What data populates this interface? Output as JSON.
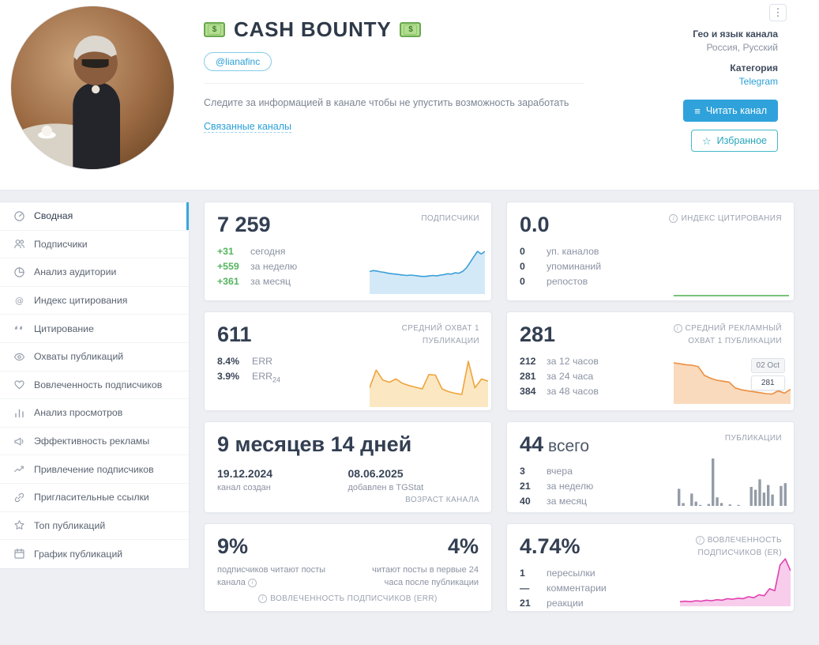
{
  "header": {
    "title": "CASH BOUNTY",
    "username": "@lianafinc",
    "description": "Следите за информацией в канале чтобы не упустить возможность заработать",
    "related_channels": "Связанные каналы",
    "geo": {
      "label": "Гео и язык канала",
      "value": "Россия, Русский"
    },
    "category": {
      "label": "Категория",
      "value": "Telegram"
    },
    "buttons": {
      "read": "Читать канал",
      "favorite": "Избранное"
    }
  },
  "sidebar": {
    "items": [
      {
        "label": "Сводная",
        "icon": "gauge",
        "active": true
      },
      {
        "label": "Подписчики",
        "icon": "users"
      },
      {
        "label": "Анализ аудитории",
        "icon": "pie"
      },
      {
        "label": "Индекс цитирования",
        "icon": "at"
      },
      {
        "label": "Цитирование",
        "icon": "quote"
      },
      {
        "label": "Охваты публикаций",
        "icon": "eye"
      },
      {
        "label": "Вовлеченность подписчиков",
        "icon": "heart"
      },
      {
        "label": "Анализ просмотров",
        "icon": "bars"
      },
      {
        "label": "Эффективность рекламы",
        "icon": "megaphone"
      },
      {
        "label": "Привлечение подписчиков",
        "icon": "trend"
      },
      {
        "label": "Пригласительные ссылки",
        "icon": "link"
      },
      {
        "label": "Топ публикаций",
        "icon": "star"
      },
      {
        "label": "График публикаций",
        "icon": "calendar"
      }
    ]
  },
  "cards": {
    "subscribers": {
      "value": "7 259",
      "label": "ПОДПИСЧИКИ",
      "stats": [
        {
          "num": "+31",
          "text": "сегодня"
        },
        {
          "num": "+559",
          "text": "за неделю"
        },
        {
          "num": "+361",
          "text": "за месяц"
        }
      ]
    },
    "citation": {
      "value": "0.0",
      "label": "ИНДЕКС ЦИТИРОВАНИЯ",
      "stats": [
        {
          "num": "0",
          "text": "уп. каналов"
        },
        {
          "num": "0",
          "text": "упоминаний"
        },
        {
          "num": "0",
          "text": "репостов"
        }
      ]
    },
    "reach": {
      "value": "611",
      "label": "СРЕДНИЙ ОХВАТ 1 ПУБЛИКАЦИИ",
      "stats": [
        {
          "num": "8.4%",
          "text": "ERR"
        },
        {
          "num": "3.9%",
          "text": "ERR",
          "sub": "24"
        }
      ]
    },
    "ad_reach": {
      "value": "281",
      "label": "СРЕДНИЙ РЕКЛАМНЫЙ ОХВАТ 1 ПУБЛИКАЦИИ",
      "stats": [
        {
          "num": "212",
          "text": "за 12 часов"
        },
        {
          "num": "281",
          "text": "за 24 часа"
        },
        {
          "num": "384",
          "text": "за 48 часов"
        }
      ],
      "tooltip": {
        "date": "02 Oct",
        "value": "281"
      }
    },
    "age": {
      "value": "9 месяцев 14 дней",
      "label": "ВОЗРАСТ КАНАЛА",
      "created": {
        "date": "19.12.2024",
        "caption": "канал создан"
      },
      "added": {
        "date": "08.06.2025",
        "caption": "добавлен в TGStat"
      }
    },
    "publications": {
      "value": "44",
      "value_suffix": "всего",
      "label": "ПУБЛИКАЦИИ",
      "stats": [
        {
          "num": "3",
          "text": "вчера"
        },
        {
          "num": "21",
          "text": "за неделю"
        },
        {
          "num": "40",
          "text": "за месяц"
        }
      ]
    },
    "err": {
      "left": {
        "value": "9%",
        "caption": "подписчиков читают посты канала"
      },
      "right": {
        "value": "4%",
        "caption": "читают посты в первые 24 часа после публикации"
      },
      "label": "ВОВЛЕЧЕННОСТЬ ПОДПИСЧИКОВ (ERR)"
    },
    "er": {
      "value": "4.74%",
      "label": "ВОВЛЕЧЕННОСТЬ ПОДПИСЧИКОВ (ER)",
      "stats": [
        {
          "num": "1",
          "text": "пересылки"
        },
        {
          "num": "—",
          "text": "комментарии"
        },
        {
          "num": "21",
          "text": "реакции"
        }
      ]
    }
  },
  "chart_data": {
    "subscribers": {
      "type": "area",
      "color": "#3b9fd8",
      "fill": "#d4e9f7",
      "values": [
        47,
        49,
        48,
        46,
        45,
        43,
        42,
        41,
        40,
        39,
        38,
        39,
        38,
        37,
        36,
        36,
        37,
        38,
        37,
        39,
        40,
        42,
        41,
        44,
        43,
        47,
        55,
        67,
        80,
        92,
        86,
        92
      ]
    },
    "citation": {
      "type": "line",
      "color": "#4cae4f",
      "values": [
        0,
        0,
        0,
        0,
        0,
        0,
        0,
        0,
        0,
        0
      ]
    },
    "reach": {
      "type": "area",
      "color": "#f0a33c",
      "fill": "#fbe8c2",
      "values": [
        32,
        64,
        46,
        42,
        48,
        40,
        36,
        33,
        30,
        56,
        55,
        30,
        25,
        22,
        20,
        80,
        32,
        48,
        44
      ]
    },
    "ad_reach": {
      "type": "area",
      "color": "#ee8f3f",
      "fill": "#f9dabd",
      "values": [
        82,
        80,
        78,
        77,
        74,
        56,
        50,
        46,
        44,
        42,
        30,
        26,
        24,
        22,
        20,
        18,
        17,
        24,
        19,
        27
      ]
    },
    "publications": {
      "type": "bars",
      "color": "#939ca7",
      "values": [
        36,
        6,
        0,
        26,
        9,
        2,
        0,
        4,
        100,
        18,
        6,
        0,
        3,
        0,
        2,
        0,
        0,
        40,
        34,
        56,
        28,
        44,
        24,
        0,
        42,
        48
      ]
    },
    "er": {
      "type": "area",
      "color": "#e23fb0",
      "fill": "#f7cdeb",
      "values": [
        6,
        7,
        6,
        8,
        7,
        9,
        8,
        10,
        9,
        12,
        11,
        13,
        12,
        16,
        14,
        20,
        18,
        32,
        28,
        80,
        92,
        68
      ]
    }
  }
}
